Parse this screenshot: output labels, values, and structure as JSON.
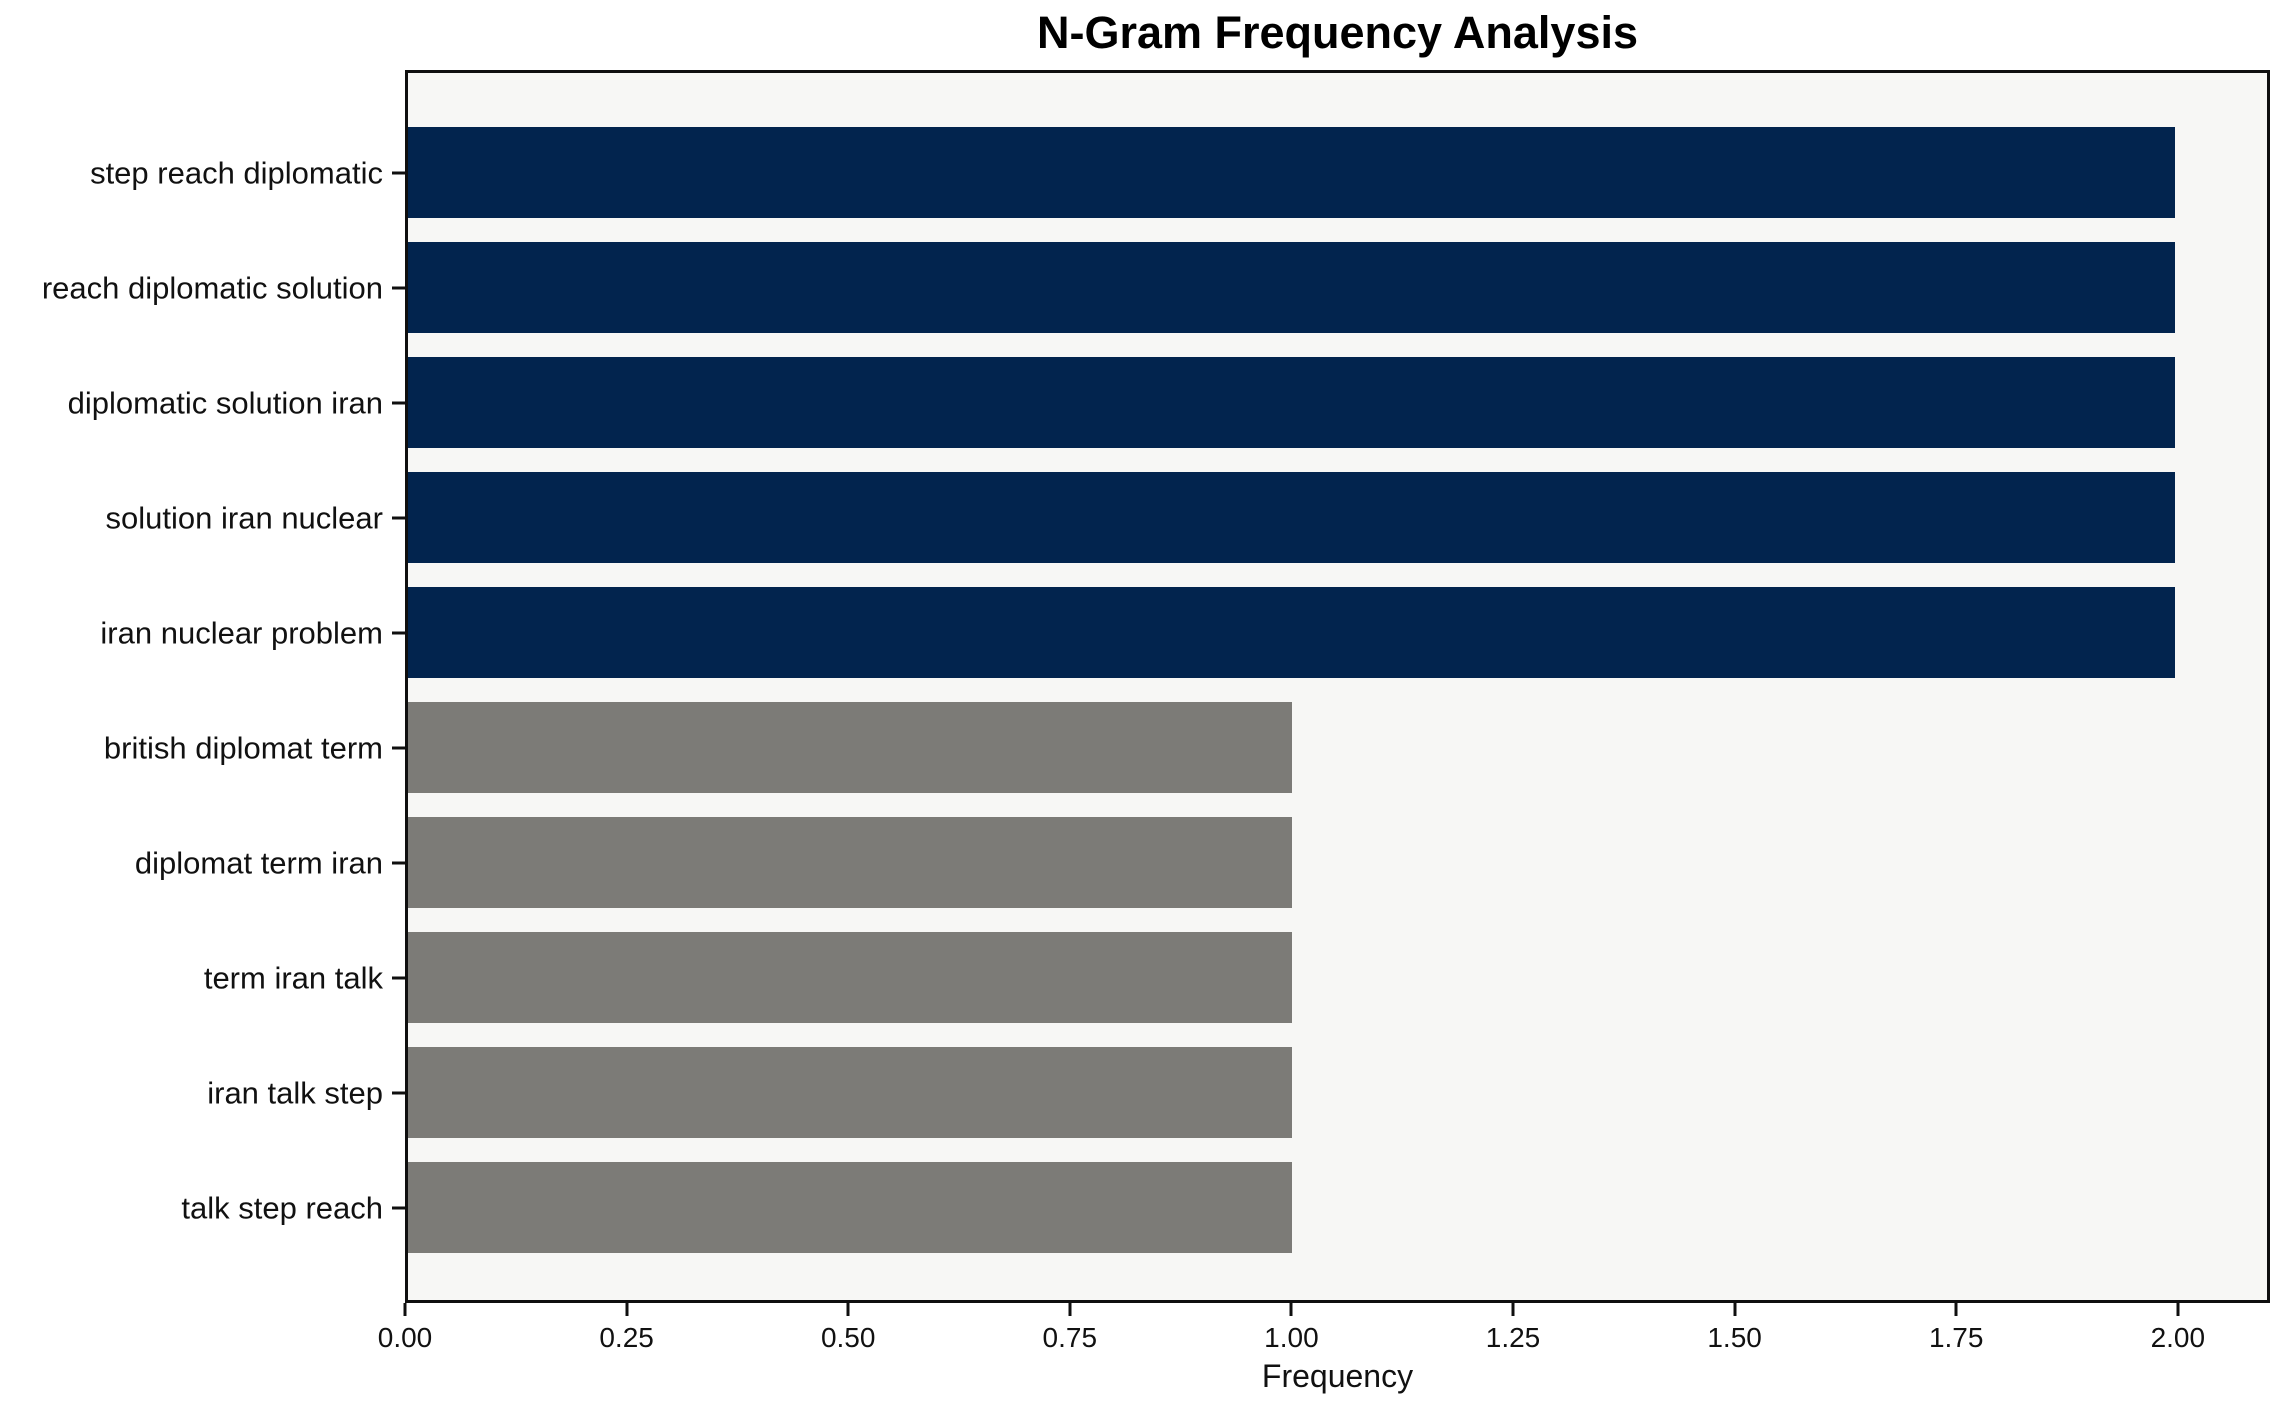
{
  "chart_data": {
    "type": "bar",
    "orientation": "horizontal",
    "title": "N-Gram Frequency Analysis",
    "xlabel": "Frequency",
    "ylabel": "",
    "categories": [
      "step reach diplomatic",
      "reach diplomatic solution",
      "diplomatic solution iran",
      "solution iran nuclear",
      "iran nuclear problem",
      "british diplomat term",
      "diplomat term iran",
      "term iran talk",
      "iran talk step",
      "talk step reach"
    ],
    "values": [
      2,
      2,
      2,
      2,
      2,
      1,
      1,
      1,
      1,
      1
    ],
    "xlim": [
      0,
      2.104
    ],
    "xticks": [
      "0.00",
      "0.25",
      "0.50",
      "0.75",
      "1.00",
      "1.25",
      "1.50",
      "1.75",
      "2.00"
    ],
    "xtick_values": [
      0,
      0.25,
      0.5,
      0.75,
      1.0,
      1.25,
      1.5,
      1.75,
      2.0
    ],
    "grid": false,
    "legend": null,
    "colors": {
      "bar_high_frequency": "#02244e",
      "bar_low_frequency": "#7c7b77",
      "plot_background": "#f7f7f5",
      "figure_background": "#ffffff",
      "spine": "#0f0f0f",
      "text": "#111111"
    },
    "high_low_threshold": 2
  }
}
